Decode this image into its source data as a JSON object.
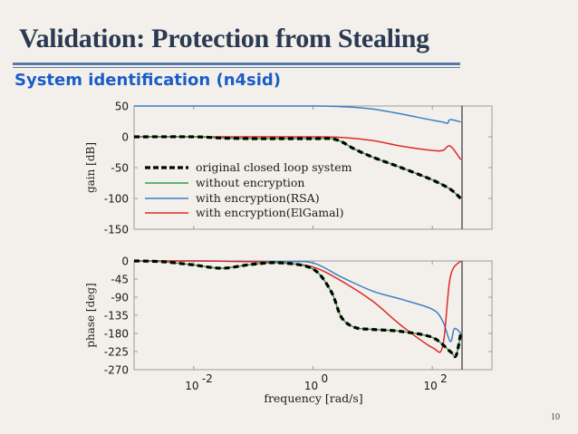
{
  "slide": {
    "title": "Validation: Protection from Stealing",
    "subtitle": "System identification (n4sid)",
    "page_number": "10"
  },
  "colors": {
    "original": "#000000",
    "without": "#3aa03a",
    "rsa": "#3d7fc4",
    "elgamal": "#dd2a2a",
    "title": "#2b3a52",
    "subtitle": "#1a5cc8",
    "rule": "#5a78a8"
  },
  "chart_data": [
    {
      "type": "line",
      "title": "Bode magnitude",
      "xlabel": "",
      "ylabel": "gain  [dB]",
      "xscale": "log",
      "xlim": [
        0.001,
        1000
      ],
      "ylim": [
        -150,
        50
      ],
      "yticks": [
        50,
        0,
        -50,
        -100,
        -150
      ],
      "xticks": [
        "10^-2",
        "10^0",
        "10^2"
      ],
      "vertical_line_x": 300,
      "legend": {
        "position": "inside-lower-left",
        "entries": [
          "original closed loop system",
          "without encryption",
          "with encryption(RSA)",
          "with encryption(ElGamal)"
        ]
      },
      "series": [
        {
          "name": "original closed loop system",
          "style": "dashed",
          "x": [
            0.001,
            0.01,
            0.03,
            0.1,
            0.3,
            1,
            2,
            3,
            5,
            10,
            30,
            100,
            200,
            300
          ],
          "y": [
            0,
            0,
            -2,
            -3,
            -3,
            -3,
            -3,
            -8,
            -20,
            -33,
            -50,
            -70,
            -85,
            -100
          ]
        },
        {
          "name": "without encryption",
          "style": "solid",
          "x": [
            0.001,
            0.01,
            0.03,
            0.1,
            0.3,
            1,
            2,
            3,
            5,
            10,
            30,
            100,
            200,
            300
          ],
          "y": [
            0,
            0,
            -2,
            -3,
            -3,
            -3,
            -3,
            -8,
            -20,
            -33,
            -50,
            -70,
            -85,
            -100
          ]
        },
        {
          "name": "with encryption(RSA)",
          "style": "solid",
          "x": [
            0.001,
            0.01,
            0.1,
            1,
            3,
            10,
            30,
            100,
            150,
            180,
            200,
            300
          ],
          "y": [
            50,
            50,
            50,
            50,
            49,
            45,
            37,
            27,
            24,
            22,
            28,
            24
          ]
        },
        {
          "name": "with encryption(ElGamal)",
          "style": "solid",
          "x": [
            0.001,
            0.01,
            0.1,
            1,
            3,
            10,
            30,
            100,
            150,
            200,
            300
          ],
          "y": [
            0,
            0,
            0,
            0,
            -1,
            -6,
            -15,
            -22,
            -22,
            -15,
            -37
          ]
        }
      ]
    },
    {
      "type": "line",
      "title": "Bode phase",
      "xlabel": "frequency  [rad/s]",
      "ylabel": "phase  [deg]",
      "xscale": "log",
      "xlim": [
        0.001,
        1000
      ],
      "ylim": [
        -270,
        0
      ],
      "yticks": [
        0,
        -45,
        -90,
        -135,
        -180,
        -225,
        -270
      ],
      "xticks": [
        "10^-2",
        "10^0",
        "10^2"
      ],
      "vertical_line_x": 300,
      "series": [
        {
          "name": "original closed loop system",
          "style": "dashed",
          "x": [
            0.001,
            0.003,
            0.01,
            0.03,
            0.1,
            0.3,
            1,
            2,
            3,
            5,
            10,
            30,
            100,
            200,
            250,
            300
          ],
          "y": [
            0,
            -2,
            -10,
            -18,
            -8,
            -5,
            -20,
            -75,
            -140,
            -165,
            -170,
            -175,
            -190,
            -225,
            -235,
            -180
          ]
        },
        {
          "name": "without encryption",
          "style": "solid",
          "x": [
            0.001,
            0.003,
            0.01,
            0.03,
            0.1,
            0.3,
            1,
            2,
            3,
            5,
            10,
            30,
            100,
            200,
            250,
            300
          ],
          "y": [
            0,
            -2,
            -10,
            -18,
            -8,
            -5,
            -20,
            -75,
            -140,
            -165,
            -170,
            -175,
            -190,
            -225,
            -235,
            -180
          ]
        },
        {
          "name": "with encryption(RSA)",
          "style": "solid",
          "x": [
            0.001,
            0.01,
            0.1,
            0.3,
            1,
            3,
            10,
            30,
            100,
            150,
            200,
            230,
            260,
            300
          ],
          "y": [
            0,
            0,
            -1,
            -2,
            -5,
            -40,
            -75,
            -95,
            -120,
            -150,
            -200,
            -170,
            -170,
            -180
          ]
        },
        {
          "name": "with encryption(ElGamal)",
          "style": "solid",
          "x": [
            0.001,
            0.01,
            0.1,
            0.3,
            1,
            3,
            10,
            30,
            100,
            150,
            200,
            300
          ],
          "y": [
            0,
            0,
            -2,
            -5,
            -15,
            -50,
            -100,
            -160,
            -215,
            -210,
            -40,
            0
          ]
        }
      ]
    }
  ]
}
